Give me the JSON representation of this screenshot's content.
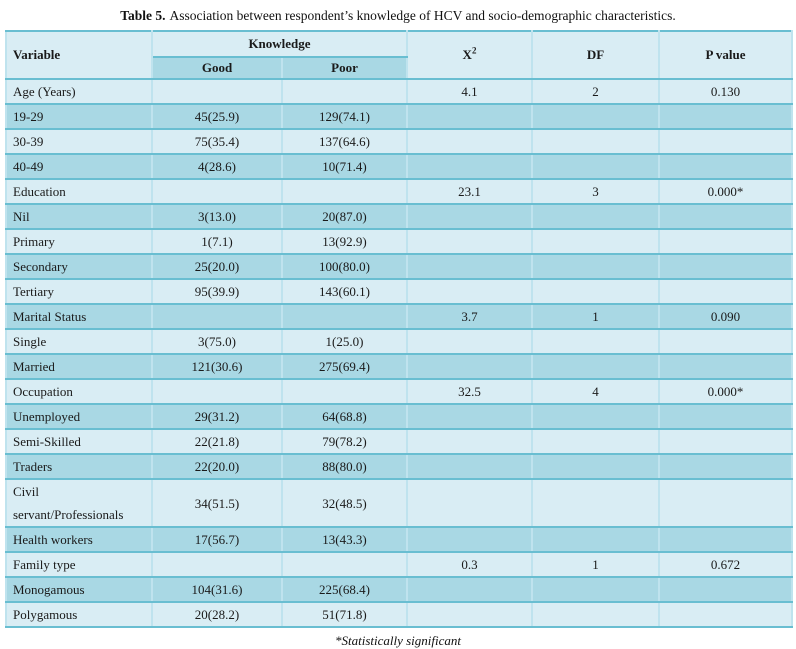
{
  "caption": {
    "label": "Table 5.",
    "text": "Association between respondent’s knowledge of HCV and socio-demographic characteristics."
  },
  "table": {
    "headers": {
      "variable": "Variable",
      "knowledge": "Knowledge",
      "good": "Good",
      "poor": "Poor",
      "chi_base": "X",
      "chi_sup": "2",
      "df": "DF",
      "p_value": "P value"
    },
    "rows": [
      {
        "variable": "Age (Years)",
        "good": "",
        "poor": "",
        "x2": "4.1",
        "df": "2",
        "p": "0.130"
      },
      {
        "variable": "19-29",
        "good": "45(25.9)",
        "poor": "129(74.1)",
        "x2": "",
        "df": "",
        "p": ""
      },
      {
        "variable": "30-39",
        "good": "75(35.4)",
        "poor": "137(64.6)",
        "x2": "",
        "df": "",
        "p": ""
      },
      {
        "variable": "40-49",
        "good": "4(28.6)",
        "poor": "10(71.4)",
        "x2": "",
        "df": "",
        "p": ""
      },
      {
        "variable": "Education",
        "good": "",
        "poor": "",
        "x2": "23.1",
        "df": "3",
        "p": "0.000*"
      },
      {
        "variable": "Nil",
        "good": "3(13.0)",
        "poor": "20(87.0)",
        "x2": "",
        "df": "",
        "p": ""
      },
      {
        "variable": "Primary",
        "good": "1(7.1)",
        "poor": "13(92.9)",
        "x2": "",
        "df": "",
        "p": ""
      },
      {
        "variable": "Secondary",
        "good": "25(20.0)",
        "poor": "100(80.0)",
        "x2": "",
        "df": "",
        "p": ""
      },
      {
        "variable": "Tertiary",
        "good": "95(39.9)",
        "poor": "143(60.1)",
        "x2": "",
        "df": "",
        "p": ""
      },
      {
        "variable": "Marital Status",
        "good": "",
        "poor": "",
        "x2": "3.7",
        "df": "1",
        "p": "0.090"
      },
      {
        "variable": "Single",
        "good": "3(75.0)",
        "poor": "1(25.0)",
        "x2": "",
        "df": "",
        "p": ""
      },
      {
        "variable": "Married",
        "good": "121(30.6)",
        "poor": "275(69.4)",
        "x2": "",
        "df": "",
        "p": ""
      },
      {
        "variable": "Occupation",
        "good": "",
        "poor": "",
        "x2": "32.5",
        "df": "4",
        "p": "0.000*"
      },
      {
        "variable": "Unemployed",
        "good": "29(31.2)",
        "poor": "64(68.8)",
        "x2": "",
        "df": "",
        "p": ""
      },
      {
        "variable": "Semi-Skilled",
        "good": "22(21.8)",
        "poor": "79(78.2)",
        "x2": "",
        "df": "",
        "p": ""
      },
      {
        "variable": "Traders",
        "good": "22(20.0)",
        "poor": "88(80.0)",
        "x2": "",
        "df": "",
        "p": ""
      },
      {
        "variable": "Civil servant/Professionals",
        "good": "34(51.5)",
        "poor": "32(48.5)",
        "x2": "",
        "df": "",
        "p": ""
      },
      {
        "variable": "Health workers",
        "good": "17(56.7)",
        "poor": "13(43.3)",
        "x2": "",
        "df": "",
        "p": ""
      },
      {
        "variable": "Family type",
        "good": "",
        "poor": "",
        "x2": "0.3",
        "df": "1",
        "p": "0.672"
      },
      {
        "variable": "Monogamous",
        "good": "104(31.6)",
        "poor": "225(68.4)",
        "x2": "",
        "df": "",
        "p": ""
      },
      {
        "variable": "Polygamous",
        "good": "20(28.2)",
        "poor": "51(71.8)",
        "x2": "",
        "df": "",
        "p": ""
      }
    ]
  },
  "footnote": "*Statistically significant",
  "colors": {
    "row_light": "#d9edf4",
    "row_dark": "#a9d8e4",
    "border_teal": "#4bacc6",
    "text": "#1a1a1a"
  }
}
